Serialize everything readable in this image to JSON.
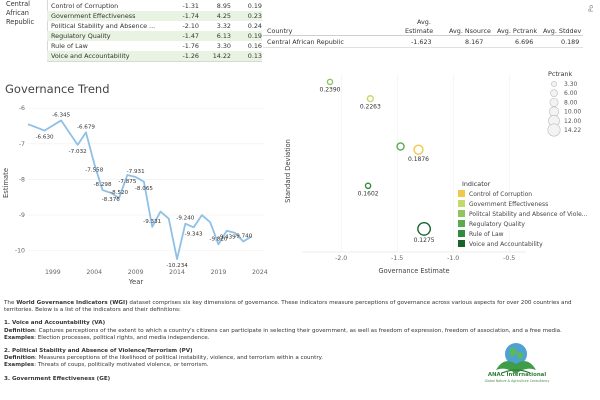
{
  "indicator_table": {
    "country": "Central African Republic",
    "rows": [
      {
        "name": "Control of Corruption",
        "v1": "-1.31",
        "v2": "8.95",
        "v3": "0.19",
        "highlight": false
      },
      {
        "name": "Government Effectiveness",
        "v1": "-1.74",
        "v2": "4.25",
        "v3": "0.23",
        "highlight": true
      },
      {
        "name": "Political Stability and Absence ...",
        "v1": "-2.10",
        "v2": "3.32",
        "v3": "0.24",
        "highlight": false
      },
      {
        "name": "Regulatory Quality",
        "v1": "-1.47",
        "v2": "6.13",
        "v3": "0.19",
        "highlight": true
      },
      {
        "name": "Rule of Law",
        "v1": "-1.76",
        "v2": "3.30",
        "v3": "0.16",
        "highlight": false
      },
      {
        "name": "Voice and Accountability",
        "v1": "-1.26",
        "v2": "14.22",
        "v3": "0.13",
        "highlight": true
      }
    ],
    "top_axis_fragment": "Po"
  },
  "summary_table": {
    "headers": {
      "country": "Country",
      "estimate_top": "Avg.",
      "estimate": "Estimate",
      "nsource": "Avg. Nsource",
      "pctrank": "Avg. Pctrank",
      "stddev": "Avg. Stddev"
    },
    "row": {
      "country": "Central African Republic",
      "estimate": "-1.623",
      "nsource": "8.167",
      "pctrank": "6.696",
      "stddev": "0.189"
    }
  },
  "trend_title": "Governance Trend",
  "scatter": {
    "pctrank_legend": {
      "title": "Pctrank",
      "items": [
        "3.30",
        "6.00",
        "8.00",
        "10.00",
        "12.00",
        "14.22"
      ]
    },
    "indicator_legend": {
      "title": "Indicator",
      "items": [
        {
          "label": "Control of Corruption",
          "color": "#f0c94a"
        },
        {
          "label": "Government Effectiveness",
          "color": "#c5d96b"
        },
        {
          "label": "Politcal Stability and Absence of Viole...",
          "color": "#8fc460"
        },
        {
          "label": "Regulatory Quality",
          "color": "#5aab4e"
        },
        {
          "label": "Rule of Law",
          "color": "#2f8c3e"
        },
        {
          "label": "Voice and Accountability",
          "color": "#17632a"
        }
      ]
    }
  },
  "chart_data": [
    {
      "type": "line",
      "title": "",
      "xlabel": "Year",
      "ylabel": "Estimate",
      "x_ticks": [
        "1999",
        "2004",
        "2009",
        "2014",
        "2019",
        "2024"
      ],
      "y_ticks": [
        "-6",
        "-7",
        "-8",
        "-9",
        "-10"
      ],
      "ylim": [
        -10.4,
        -5.8
      ],
      "xlim": [
        1996,
        2024.5
      ],
      "series": [
        {
          "x": [
            1996,
            1998,
            2000,
            2002,
            2003,
            2004,
            2005,
            2006,
            2007,
            2008,
            2009,
            2010,
            2011,
            2012,
            2013,
            2014,
            2015,
            2016,
            2017,
            2018,
            2019,
            2020,
            2021,
            2022,
            2023
          ],
          "values": [
            -6.45,
            -6.63,
            -6.345,
            -7.032,
            -6.679,
            -7.558,
            -8.298,
            -8.376,
            -8.52,
            -7.875,
            -7.931,
            -8.065,
            -9.331,
            -8.9,
            -9.1,
            -10.234,
            -9.24,
            -9.343,
            -9.0,
            -9.2,
            -9.82,
            -9.439,
            -9.5,
            -9.74,
            -9.6
          ]
        }
      ],
      "data_labels": [
        {
          "x": 1998,
          "y": -6.63,
          "label": "-6.630"
        },
        {
          "x": 2000,
          "y": -6.345,
          "label": "-6.345"
        },
        {
          "x": 2002,
          "y": -7.032,
          "label": "-7.032"
        },
        {
          "x": 2003,
          "y": -6.679,
          "label": "-6.679"
        },
        {
          "x": 2004,
          "y": -7.558,
          "label": "-7.558"
        },
        {
          "x": 2005,
          "y": -8.298,
          "label": "-8.298"
        },
        {
          "x": 2006,
          "y": -8.376,
          "label": "-8.376"
        },
        {
          "x": 2007,
          "y": -8.52,
          "label": "-8.520"
        },
        {
          "x": 2008,
          "y": -7.875,
          "label": "-7.875"
        },
        {
          "x": 2009,
          "y": -7.931,
          "label": "-7.931"
        },
        {
          "x": 2010,
          "y": -8.065,
          "label": "-8.065"
        },
        {
          "x": 2011,
          "y": -9.331,
          "label": "-9.331"
        },
        {
          "x": 2014,
          "y": -10.234,
          "label": "-10.234"
        },
        {
          "x": 2015,
          "y": -9.24,
          "label": "-9.240"
        },
        {
          "x": 2016,
          "y": -9.343,
          "label": "-9.343"
        },
        {
          "x": 2019,
          "y": -9.82,
          "label": "-9.820"
        },
        {
          "x": 2020,
          "y": -9.439,
          "label": "-9.439"
        },
        {
          "x": 2022,
          "y": -9.74,
          "label": "-9.740"
        }
      ]
    },
    {
      "type": "scatter",
      "title": "",
      "xlabel": "Governance Estimate",
      "ylabel": "Standard Deviation",
      "x_ticks": [
        "-2.0",
        "-1.5",
        "-1.0",
        "-0.5"
      ],
      "xlim": [
        -2.35,
        -0.35
      ],
      "ylim": [
        0.11,
        0.245
      ],
      "points": [
        {
          "x": -2.1,
          "y": 0.239,
          "label": "0.2390",
          "indicator": "Politcal Stability and Absence of Viole...",
          "pctrank": 3.32
        },
        {
          "x": -1.74,
          "y": 0.2263,
          "label": "0.2263",
          "indicator": "Government Effectiveness",
          "pctrank": 4.25
        },
        {
          "x": -1.31,
          "y": 0.1876,
          "label": "0.1876",
          "indicator": "Control of Corruption",
          "pctrank": 8.95
        },
        {
          "x": -1.47,
          "y": 0.19,
          "label": "",
          "indicator": "Regulatory Quality",
          "pctrank": 6.13
        },
        {
          "x": -1.76,
          "y": 0.1602,
          "label": "0.1602",
          "indicator": "Rule of Law",
          "pctrank": 3.3
        },
        {
          "x": -1.26,
          "y": 0.1275,
          "label": "0.1275",
          "indicator": "Voice and Accountability",
          "pctrank": 14.22
        }
      ]
    }
  ],
  "description": {
    "intro_pre": "The ",
    "intro_bold": "World Governance Indicators (WGI)",
    "intro_post": " dataset comprises six key dimensions of governance. These indicators measure perceptions of governance across various aspects for over 200 countries and territories. Below is a list of the indicators and their definitions:",
    "sections": [
      {
        "title": "1. Voice and Accountability (VA)",
        "definition_label": "Definition",
        "definition": ": Captures perceptions of the extent to which a country's citizens can participate in selecting their government, as well as freedom of expression, freedom of association, and a free media.",
        "examples_label": "Examples",
        "examples": ": Election processes, political rights, and media independence."
      },
      {
        "title": "2. Political Stability and Absence of Violence/Terrorism (PV)",
        "definition_label": "Definition",
        "definition": ": Measures perceptions of the likelihood of political instability, violence, and terrorism within a country.",
        "examples_label": "Examples",
        "examples": ": Threats of coups, politically motivated violence, or terrorism."
      }
    ],
    "section3_title": "3. Government Effectiveness (GE)"
  },
  "logo": {
    "name": "ANAC International",
    "tagline": "Global Nature & Agriculture Consultancy"
  }
}
